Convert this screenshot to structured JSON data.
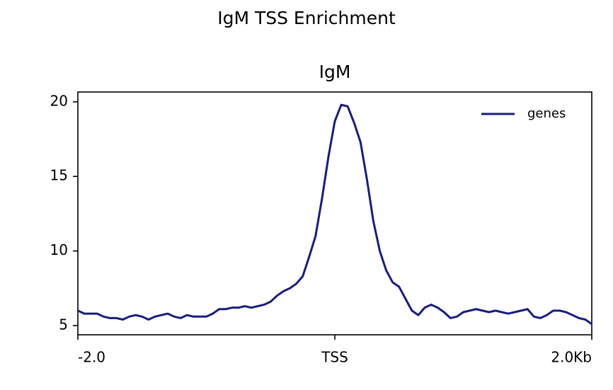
{
  "chart_data": {
    "type": "line",
    "title": "IgM TSS Enrichment",
    "subtitle": "IgM",
    "x": [
      -2.0,
      -1.95,
      -1.9,
      -1.85,
      -1.8,
      -1.75,
      -1.7,
      -1.65,
      -1.6,
      -1.55,
      -1.5,
      -1.45,
      -1.4,
      -1.35,
      -1.3,
      -1.25,
      -1.2,
      -1.15,
      -1.1,
      -1.05,
      -1.0,
      -0.95,
      -0.9,
      -0.85,
      -0.8,
      -0.75,
      -0.7,
      -0.65,
      -0.6,
      -0.55,
      -0.5,
      -0.45,
      -0.4,
      -0.35,
      -0.3,
      -0.25,
      -0.2,
      -0.15,
      -0.1,
      -0.05,
      0.0,
      0.05,
      0.1,
      0.15,
      0.2,
      0.25,
      0.3,
      0.35,
      0.4,
      0.45,
      0.5,
      0.55,
      0.6,
      0.65,
      0.7,
      0.75,
      0.8,
      0.85,
      0.9,
      0.95,
      1.0,
      1.05,
      1.1,
      1.15,
      1.2,
      1.25,
      1.3,
      1.35,
      1.4,
      1.45,
      1.5,
      1.55,
      1.6,
      1.65,
      1.7,
      1.75,
      1.8,
      1.85,
      1.9,
      1.95,
      2.0
    ],
    "series": [
      {
        "name": "genes",
        "color": "#191c7f",
        "values": [
          6.0,
          5.8,
          5.8,
          5.8,
          5.6,
          5.5,
          5.5,
          5.4,
          5.6,
          5.7,
          5.6,
          5.4,
          5.6,
          5.7,
          5.8,
          5.6,
          5.5,
          5.7,
          5.6,
          5.6,
          5.6,
          5.8,
          6.1,
          6.1,
          6.2,
          6.2,
          6.3,
          6.2,
          6.3,
          6.4,
          6.6,
          7.0,
          7.3,
          7.5,
          7.8,
          8.3,
          9.6,
          11.0,
          13.5,
          16.3,
          18.7,
          19.8,
          19.7,
          18.6,
          17.3,
          14.8,
          12.0,
          10.0,
          8.7,
          7.9,
          7.6,
          6.8,
          6.0,
          5.7,
          6.2,
          6.4,
          6.2,
          5.9,
          5.5,
          5.6,
          5.9,
          6.0,
          6.1,
          6.0,
          5.9,
          6.0,
          5.9,
          5.8,
          5.9,
          6.0,
          6.1,
          5.6,
          5.5,
          5.7,
          6.0,
          6.0,
          5.9,
          5.7,
          5.5,
          5.4,
          5.1
        ]
      }
    ],
    "xlim": [
      -2.0,
      2.0
    ],
    "xticks": [
      {
        "value": -2.0,
        "label": "-2.0"
      },
      {
        "value": 0,
        "label": "TSS"
      },
      {
        "value": 2.0,
        "label": "2.0Kb"
      }
    ],
    "ylim": [
      4.38,
      20.66
    ],
    "yticks": [
      5,
      10,
      15,
      20
    ],
    "grid": false,
    "legend": "upper right"
  }
}
